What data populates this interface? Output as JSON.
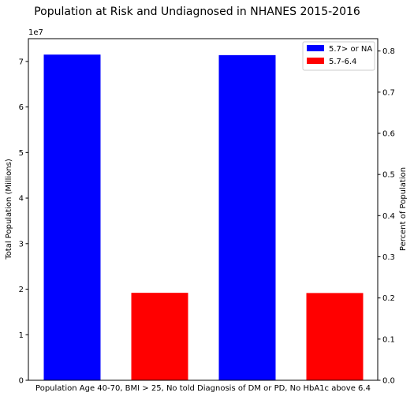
{
  "chart_data": {
    "type": "bar",
    "title": "Population at Risk and Undiagnosed in NHANES 2015-2016",
    "xlabel": "Population Age 40-70, BMI > 25, No told Diagnosis of DM or PD, No HbA1c above 6.4",
    "ylabel": "Total Population (Millions)",
    "y2label": "Percent of Population",
    "y_offset_label": "1e7",
    "ylim": [
      0,
      75000000
    ],
    "y2lim": [
      0,
      0.83
    ],
    "yticks": [
      {
        "value": 0,
        "label": "0"
      },
      {
        "value": 10000000,
        "label": "1"
      },
      {
        "value": 20000000,
        "label": "2"
      },
      {
        "value": 30000000,
        "label": "3"
      },
      {
        "value": 40000000,
        "label": "4"
      },
      {
        "value": 50000000,
        "label": "5"
      },
      {
        "value": 60000000,
        "label": "6"
      },
      {
        "value": 70000000,
        "label": "7"
      }
    ],
    "y2ticks": [
      {
        "value": 0.0,
        "label": "0.0"
      },
      {
        "value": 0.1,
        "label": "0.1"
      },
      {
        "value": 0.2,
        "label": "0.2"
      },
      {
        "value": 0.3,
        "label": "0.3"
      },
      {
        "value": 0.4,
        "label": "0.4"
      },
      {
        "value": 0.5,
        "label": "0.5"
      },
      {
        "value": 0.6,
        "label": "0.6"
      },
      {
        "value": 0.7,
        "label": "0.7"
      },
      {
        "value": 0.8,
        "label": "0.8"
      }
    ],
    "bars": [
      {
        "series": "5.7> or NA",
        "axis": "left",
        "value": 71500000,
        "color": "#0000ff"
      },
      {
        "series": "5.7-6.4",
        "axis": "left",
        "value": 19200000,
        "color": "#ff0000"
      },
      {
        "series": "5.7> or NA",
        "axis": "right",
        "value": 0.79,
        "color": "#0000ff"
      },
      {
        "series": "5.7-6.4",
        "axis": "right",
        "value": 0.212,
        "color": "#ff0000"
      }
    ],
    "series": [
      {
        "name": "5.7> or NA",
        "color": "#0000ff"
      },
      {
        "name": "5.7-6.4",
        "color": "#ff0000"
      }
    ],
    "legend_position": "top-right",
    "grid": false
  }
}
